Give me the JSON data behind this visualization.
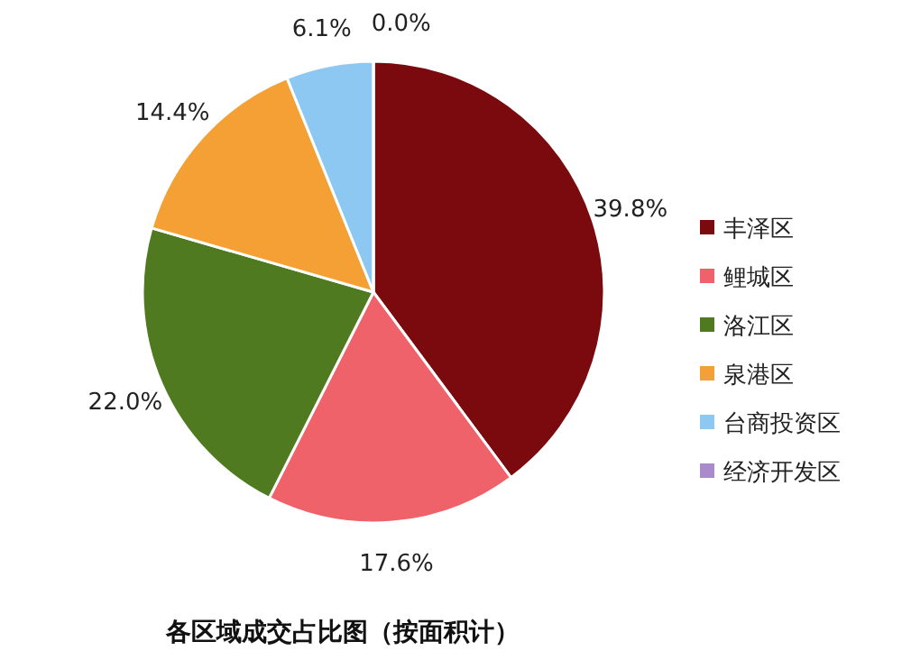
{
  "chart_data": {
    "type": "pie",
    "title": "各区域成交占比图（按面积计）",
    "categories": [
      "丰泽区",
      "鲤城区",
      "洛江区",
      "泉港区",
      "台商投资区",
      "经济开发区"
    ],
    "values": [
      39.8,
      17.6,
      22.0,
      14.4,
      6.1,
      0.0
    ],
    "value_labels": [
      "39.8%",
      "17.6%",
      "22.0%",
      "14.4%",
      "6.1%",
      "0.0%"
    ],
    "colors": [
      "#7a0a0e",
      "#f0626a",
      "#4f7a1f",
      "#f5a035",
      "#8cc8f2",
      "#a98bcc"
    ],
    "legend": "right"
  }
}
